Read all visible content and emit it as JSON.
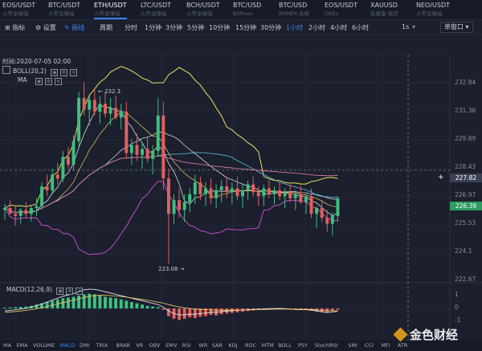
{
  "symbols": [
    {
      "name": "EOS/USDT",
      "sub": "火币全球站"
    },
    {
      "name": "BTC/USDT",
      "sub": "火币全球站"
    },
    {
      "name": "ETH/USDT",
      "sub": "火币全球站"
    },
    {
      "name": "LTC/USDT",
      "sub": "火币全球站"
    },
    {
      "name": "BCH/USDT",
      "sub": "火币全球站"
    },
    {
      "name": "BTC/USD",
      "sub": "Bitfinex"
    },
    {
      "name": "BTC/USD",
      "sub": "BitMEX-永续"
    },
    {
      "name": "EOS/USDT",
      "sub": "OKEx"
    },
    {
      "name": "XAUUSD",
      "sub": "伦敦金-现货"
    },
    {
      "name": "NEO/USDT",
      "sub": "火币全球站"
    }
  ],
  "toolbar": {
    "indicators": "指标",
    "settings": "设置",
    "draw": "画线",
    "period": "周期",
    "timeframes": [
      "分时",
      "1分钟",
      "3分钟",
      "5分钟",
      "10分钟",
      "15分钟",
      "30分钟",
      "1小时",
      "2小时",
      "4小时",
      "6小时"
    ],
    "active_timeframe": "1小时",
    "speed": "1s",
    "window": "单窗口"
  },
  "info": {
    "time": "时间:2020-07-05 02:00",
    "boll": "BOLL(20,2)",
    "ma": "MA",
    "macd": "MACD(12,26,9)"
  },
  "icons": {
    "eye": "eye-icon",
    "gear": "gear-icon",
    "close": "close-icon"
  },
  "colors": {
    "up": "#3fbf7f",
    "down": "#e0605e",
    "boll_upper": "#e8e35a",
    "boll_mid": "#d2d4da",
    "boll_lower": "#c94ac9",
    "ma_long": "#d67aa0",
    "ma_mid": "#5bc0de",
    "crosshair": "#8a90a0"
  },
  "bottom_indicators": [
    "MA",
    "EMA",
    "VOLUME",
    "MACD",
    "DMI",
    "TRIX",
    "BRAR",
    "VR",
    "OBV",
    "EMV",
    "RSI",
    "WR",
    "SAR",
    "KDJ",
    "ROC",
    "MTM",
    "BOLL",
    "PSY",
    "StochRSI",
    "SMI",
    "CCI",
    "MFI",
    "ATR"
  ],
  "active_indicator": "MACD",
  "watermark": "金色财经",
  "chart_data": {
    "type": "candlestick",
    "price_ticks": [
      232.84,
      231.36,
      229.89,
      228.43,
      226.97,
      225.53,
      224.1,
      222.67
    ],
    "macd_ticks": [
      1.0,
      0.0,
      -1.0
    ],
    "crosshair_price": "227.82",
    "last_price": "226.39",
    "high_label": "232.3",
    "low_label": "223.08",
    "ylim": [
      222.1,
      233.7
    ],
    "candles": [
      [
        225.8,
        226.1,
        225.3,
        225.9
      ],
      [
        225.9,
        226.3,
        225.6,
        225.6
      ],
      [
        225.6,
        226.0,
        225.0,
        225.5
      ],
      [
        225.5,
        225.9,
        225.1,
        225.8
      ],
      [
        225.8,
        226.2,
        225.4,
        225.6
      ],
      [
        225.6,
        226.0,
        225.2,
        225.9
      ],
      [
        225.9,
        226.4,
        225.5,
        226.0
      ],
      [
        226.0,
        227.2,
        225.8,
        227.0
      ],
      [
        227.0,
        227.6,
        226.5,
        226.8
      ],
      [
        226.8,
        227.9,
        226.6,
        227.6
      ],
      [
        227.6,
        228.2,
        227.1,
        227.4
      ],
      [
        227.4,
        228.8,
        227.2,
        228.5
      ],
      [
        228.5,
        229.0,
        227.9,
        228.1
      ],
      [
        228.1,
        229.6,
        227.8,
        229.3
      ],
      [
        229.3,
        231.8,
        229.0,
        231.5
      ],
      [
        231.5,
        232.3,
        230.6,
        230.9
      ],
      [
        230.9,
        231.7,
        230.1,
        231.4
      ],
      [
        231.4,
        231.9,
        230.6,
        230.8
      ],
      [
        230.8,
        231.6,
        230.2,
        231.2
      ],
      [
        231.2,
        231.8,
        230.5,
        230.7
      ],
      [
        230.7,
        231.5,
        230.1,
        231.0
      ],
      [
        231.0,
        231.6,
        230.4,
        230.5
      ],
      [
        230.5,
        231.2,
        229.9,
        230.8
      ],
      [
        230.8,
        231.3,
        228.4,
        228.7
      ],
      [
        228.7,
        229.4,
        228.1,
        229.1
      ],
      [
        229.1,
        229.7,
        228.3,
        228.6
      ],
      [
        228.6,
        229.2,
        227.9,
        228.9
      ],
      [
        228.9,
        229.5,
        228.2,
        228.4
      ],
      [
        228.4,
        229.1,
        227.6,
        228.8
      ],
      [
        228.8,
        231.5,
        228.5,
        230.6
      ],
      [
        230.6,
        231.3,
        226.8,
        227.4
      ],
      [
        227.4,
        227.9,
        223.08,
        225.6
      ],
      [
        225.6,
        226.6,
        225.1,
        226.3
      ],
      [
        226.3,
        226.9,
        225.4,
        225.8
      ],
      [
        225.8,
        226.6,
        225.2,
        226.2
      ],
      [
        226.2,
        226.9,
        225.7,
        226.6
      ],
      [
        226.6,
        227.6,
        226.1,
        227.2
      ],
      [
        227.2,
        227.5,
        226.3,
        226.6
      ],
      [
        226.6,
        227.2,
        226.0,
        226.9
      ],
      [
        226.9,
        227.4,
        226.1,
        226.4
      ],
      [
        226.4,
        227.1,
        225.9,
        226.8
      ],
      [
        226.8,
        227.3,
        226.2,
        227.0
      ],
      [
        227.0,
        227.4,
        226.4,
        226.7
      ],
      [
        226.7,
        227.2,
        226.1,
        226.9
      ],
      [
        226.9,
        227.5,
        226.3,
        226.5
      ],
      [
        226.5,
        227.1,
        225.9,
        226.8
      ],
      [
        226.8,
        227.3,
        226.3,
        227.1
      ],
      [
        227.1,
        227.5,
        226.5,
        226.7
      ],
      [
        226.7,
        227.0,
        226.0,
        226.5
      ],
      [
        226.5,
        227.1,
        226.0,
        226.9
      ],
      [
        226.9,
        227.3,
        226.4,
        226.6
      ],
      [
        226.6,
        227.0,
        226.1,
        226.8
      ],
      [
        226.8,
        227.2,
        226.3,
        226.5
      ],
      [
        226.5,
        226.9,
        225.9,
        226.7
      ],
      [
        226.7,
        227.1,
        226.2,
        226.4
      ],
      [
        226.4,
        226.8,
        225.8,
        226.6
      ],
      [
        226.6,
        227.0,
        226.1,
        226.2
      ],
      [
        226.2,
        226.6,
        225.6,
        226.5
      ],
      [
        226.5,
        226.9,
        225.4,
        225.6
      ],
      [
        225.6,
        226.0,
        224.9,
        225.9
      ],
      [
        225.9,
        226.3,
        225.2,
        225.4
      ],
      [
        225.4,
        225.8,
        224.7,
        225.1
      ],
      [
        225.1,
        225.7,
        224.5,
        225.5
      ],
      [
        225.5,
        226.5,
        225.2,
        226.39
      ]
    ],
    "macd_hist": [
      0.05,
      0.08,
      0.1,
      0.12,
      0.15,
      0.2,
      0.3,
      0.4,
      0.5,
      0.6,
      0.7,
      0.8,
      0.85,
      0.9,
      1.0,
      1.1,
      1.15,
      1.1,
      1.0,
      0.9,
      0.85,
      0.8,
      0.7,
      0.6,
      0.5,
      0.4,
      0.3,
      0.2,
      0.15,
      0.1,
      -0.1,
      -0.6,
      -0.8,
      -0.9,
      -0.8,
      -0.7,
      -0.75,
      -0.65,
      -0.6,
      -0.5,
      -0.55,
      -0.45,
      -0.4,
      -0.35,
      -0.3,
      -0.25,
      -0.2,
      -0.15,
      -0.12,
      -0.08,
      -0.05,
      -0.04,
      -0.03,
      -0.05,
      -0.08,
      -0.1,
      -0.12,
      -0.1,
      -0.15,
      -0.2,
      -0.25,
      -0.3,
      -0.2,
      -0.1
    ],
    "macd_line": [
      -0.2,
      -0.15,
      -0.1,
      -0.05,
      0.0,
      0.1,
      0.2,
      0.35,
      0.5,
      0.65,
      0.8,
      0.95,
      1.05,
      1.15,
      1.3,
      1.45,
      1.5,
      1.48,
      1.4,
      1.3,
      1.2,
      1.1,
      1.0,
      0.9,
      0.8,
      0.7,
      0.6,
      0.5,
      0.4,
      0.3,
      0.1,
      -0.2,
      -0.4,
      -0.5,
      -0.5,
      -0.45,
      -0.45,
      -0.4,
      -0.35,
      -0.3,
      -0.3,
      -0.25,
      -0.2,
      -0.18,
      -0.15,
      -0.12,
      -0.1,
      -0.08,
      -0.06,
      -0.04,
      -0.02,
      -0.01,
      0.0,
      -0.02,
      -0.05,
      -0.08,
      -0.1,
      -0.1,
      -0.14,
      -0.2,
      -0.26,
      -0.32,
      -0.28,
      -0.22
    ],
    "signal_line": [
      -0.3,
      -0.27,
      -0.24,
      -0.2,
      -0.15,
      -0.1,
      -0.03,
      0.05,
      0.15,
      0.25,
      0.35,
      0.45,
      0.55,
      0.65,
      0.75,
      0.85,
      0.95,
      1.0,
      1.02,
      1.02,
      1.0,
      0.97,
      0.93,
      0.88,
      0.82,
      0.76,
      0.7,
      0.63,
      0.56,
      0.49,
      0.41,
      0.3,
      0.2,
      0.12,
      0.05,
      0.0,
      -0.05,
      -0.08,
      -0.1,
      -0.12,
      -0.13,
      -0.14,
      -0.14,
      -0.14,
      -0.13,
      -0.12,
      -0.11,
      -0.1,
      -0.09,
      -0.08,
      -0.07,
      -0.06,
      -0.05,
      -0.05,
      -0.05,
      -0.06,
      -0.07,
      -0.08,
      -0.09,
      -0.11,
      -0.14,
      -0.17,
      -0.19,
      -0.2
    ]
  }
}
